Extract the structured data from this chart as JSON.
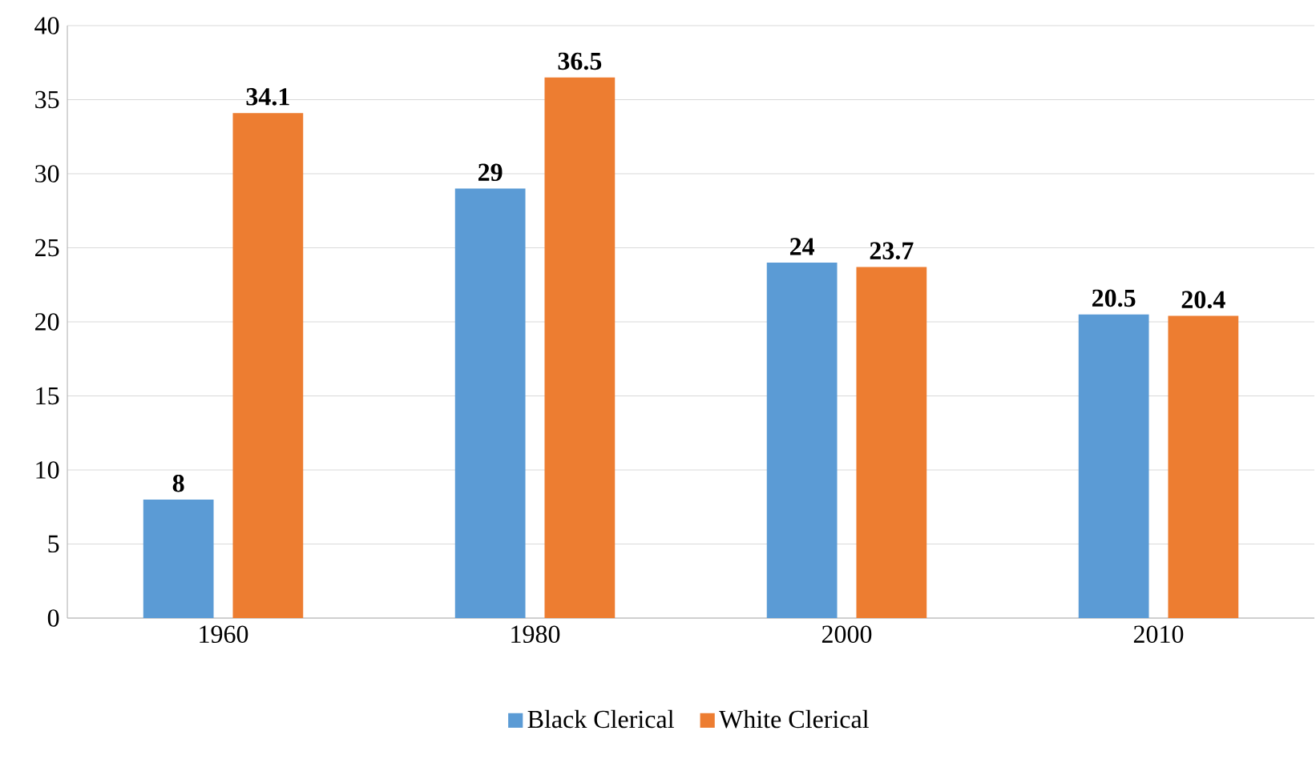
{
  "chart_data": {
    "type": "bar",
    "categories": [
      "1960",
      "1980",
      "2000",
      "2010"
    ],
    "series": [
      {
        "name": "Black Clerical",
        "color": "#5b9bd5",
        "values": [
          8,
          29,
          24,
          20.5
        ]
      },
      {
        "name": "White Clerical",
        "color": "#ed7d31",
        "values": [
          34.1,
          36.5,
          23.7,
          20.4
        ]
      }
    ],
    "ylim": [
      0,
      40
    ],
    "yticks": [
      0,
      5,
      10,
      15,
      20,
      25,
      30,
      35,
      40
    ],
    "grid": "y",
    "legend": "bottom",
    "data_labels": true
  }
}
